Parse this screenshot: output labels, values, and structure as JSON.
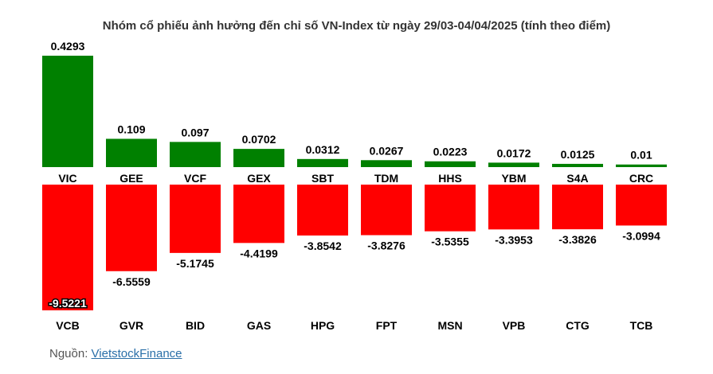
{
  "source": {
    "label": "Nguồn:",
    "link_text": "VietstockFinance"
  },
  "chart_data": {
    "type": "bar",
    "title": "Nhóm cổ phiếu ảnh hưởng đến chỉ số VN-Index từ ngày 29/03-04/04/2025 (tính theo điểm)",
    "positive": {
      "color": "#008000",
      "categories": [
        "VIC",
        "GEE",
        "VCF",
        "GEX",
        "SBT",
        "TDM",
        "HHS",
        "YBM",
        "S4A",
        "CRC"
      ],
      "values": [
        0.4293,
        0.109,
        0.097,
        0.0702,
        0.0312,
        0.0267,
        0.0223,
        0.0172,
        0.0125,
        0.01
      ]
    },
    "negative": {
      "color": "#ff0000",
      "categories": [
        "VCB",
        "GVR",
        "BID",
        "GAS",
        "HPG",
        "FPT",
        "MSN",
        "VPB",
        "CTG",
        "TCB"
      ],
      "values": [
        -9.5221,
        -6.5559,
        -5.1745,
        -4.4199,
        -3.8542,
        -3.8276,
        -3.5355,
        -3.3953,
        -3.3826,
        -3.0994
      ]
    }
  }
}
